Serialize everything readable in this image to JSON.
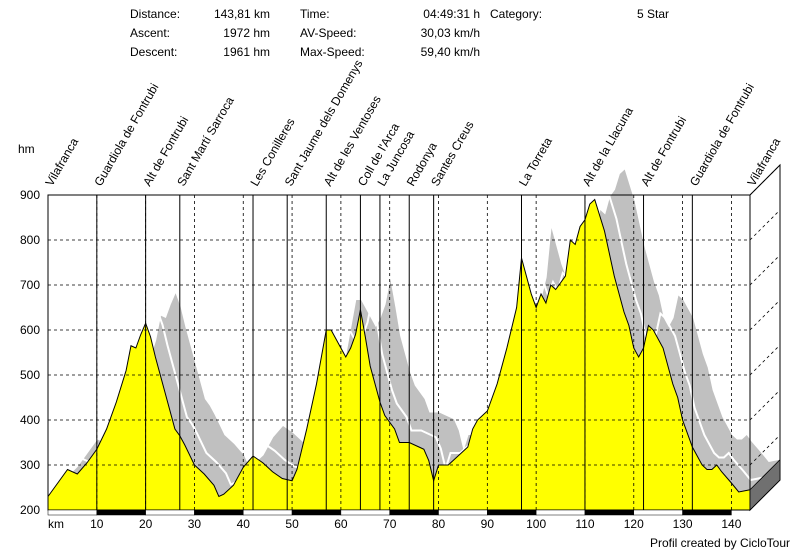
{
  "stats": {
    "distance_label": "Distance:",
    "distance_value": "143,81 km",
    "ascent_label": "Ascent:",
    "ascent_value": "1972 hm",
    "descent_label": "Descent:",
    "descent_value": "1961 hm",
    "time_label": "Time:",
    "time_value": "04:49:31 h",
    "avspeed_label": "AV-Speed:",
    "avspeed_value": "30,03 km/h",
    "maxspeed_label": "Max-Speed:",
    "maxspeed_value": "59,40 km/h",
    "category_label": "Category:",
    "category_value": "5 Star"
  },
  "footer": "Profil created by CicloTour",
  "chart_data": {
    "type": "area",
    "xlabel": "km",
    "ylabel": "hm",
    "xlim": [
      0,
      143.81
    ],
    "ylim": [
      200,
      900
    ],
    "x_ticks": [
      10,
      20,
      30,
      40,
      50,
      60,
      70,
      80,
      90,
      100,
      110,
      120,
      130,
      140
    ],
    "y_ticks": [
      200,
      300,
      400,
      500,
      600,
      700,
      800,
      900
    ],
    "grid": true,
    "fill_color": "#ffff00",
    "shadow_color": "#c0c0c0",
    "profile": [
      [
        0,
        230
      ],
      [
        2,
        260
      ],
      [
        4,
        290
      ],
      [
        6,
        280
      ],
      [
        8,
        305
      ],
      [
        10,
        335
      ],
      [
        12,
        380
      ],
      [
        14,
        440
      ],
      [
        16,
        510
      ],
      [
        17,
        565
      ],
      [
        18,
        560
      ],
      [
        19,
        590
      ],
      [
        20,
        615
      ],
      [
        21,
        585
      ],
      [
        22,
        540
      ],
      [
        24,
        460
      ],
      [
        26,
        380
      ],
      [
        27,
        365
      ],
      [
        28,
        345
      ],
      [
        30,
        300
      ],
      [
        32,
        280
      ],
      [
        34,
        255
      ],
      [
        35,
        230
      ],
      [
        36,
        235
      ],
      [
        38,
        255
      ],
      [
        40,
        295
      ],
      [
        42,
        320
      ],
      [
        44,
        305
      ],
      [
        46,
        285
      ],
      [
        48,
        270
      ],
      [
        50,
        265
      ],
      [
        51,
        290
      ],
      [
        53,
        380
      ],
      [
        55,
        480
      ],
      [
        57,
        600
      ],
      [
        58,
        600
      ],
      [
        60,
        560
      ],
      [
        61,
        540
      ],
      [
        62,
        560
      ],
      [
        63,
        590
      ],
      [
        64,
        645
      ],
      [
        65,
        585
      ],
      [
        66,
        520
      ],
      [
        68,
        440
      ],
      [
        69,
        410
      ],
      [
        71,
        380
      ],
      [
        72,
        350
      ],
      [
        74,
        350
      ],
      [
        76,
        340
      ],
      [
        77,
        335
      ],
      [
        78,
        310
      ],
      [
        79,
        265
      ],
      [
        80,
        300
      ],
      [
        82,
        300
      ],
      [
        84,
        320
      ],
      [
        86,
        340
      ],
      [
        87,
        380
      ],
      [
        88,
        400
      ],
      [
        90,
        420
      ],
      [
        92,
        480
      ],
      [
        94,
        560
      ],
      [
        96,
        650
      ],
      [
        97,
        760
      ],
      [
        98,
        720
      ],
      [
        99,
        680
      ],
      [
        100,
        650
      ],
      [
        101,
        680
      ],
      [
        102,
        660
      ],
      [
        103,
        700
      ],
      [
        104,
        690
      ],
      [
        106,
        720
      ],
      [
        107,
        800
      ],
      [
        108,
        790
      ],
      [
        109,
        830
      ],
      [
        110,
        845
      ],
      [
        111,
        880
      ],
      [
        112,
        890
      ],
      [
        114,
        820
      ],
      [
        116,
        720
      ],
      [
        118,
        640
      ],
      [
        119,
        610
      ],
      [
        120,
        560
      ],
      [
        121,
        540
      ],
      [
        122,
        560
      ],
      [
        123,
        610
      ],
      [
        124,
        600
      ],
      [
        126,
        560
      ],
      [
        128,
        480
      ],
      [
        129,
        450
      ],
      [
        130,
        400
      ],
      [
        132,
        340
      ],
      [
        134,
        300
      ],
      [
        135,
        290
      ],
      [
        136,
        290
      ],
      [
        137,
        300
      ],
      [
        138,
        285
      ],
      [
        140,
        260
      ],
      [
        141.5,
        240
      ],
      [
        143.81,
        245
      ]
    ],
    "waypoints": [
      {
        "name": "Vilafranca",
        "km": 0
      },
      {
        "name": "Guardiola de Fontrubi",
        "km": 10
      },
      {
        "name": "Alt de Fontrubi",
        "km": 20
      },
      {
        "name": "Sant Martí Sarroca",
        "km": 27
      },
      {
        "name": "Les Conilleres",
        "km": 42
      },
      {
        "name": "Sant Jaume dels Domenys",
        "km": 49
      },
      {
        "name": "Alt de les Ventoses",
        "km": 57
      },
      {
        "name": "Coll de l'Arca",
        "km": 64
      },
      {
        "name": "La Juncosa",
        "km": 68
      },
      {
        "name": "Rodonya",
        "km": 74
      },
      {
        "name": "Santes Creus",
        "km": 79
      },
      {
        "name": "La Torreta",
        "km": 97
      },
      {
        "name": "Alt de la Llacuna",
        "km": 110
      },
      {
        "name": "Alt de Fontrubi",
        "km": 122
      },
      {
        "name": "Guardiola de Fontrubi",
        "km": 132
      },
      {
        "name": "Vilafranca",
        "km": 143.81
      }
    ]
  }
}
